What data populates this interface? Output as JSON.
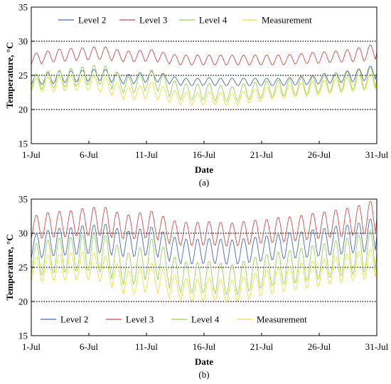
{
  "colors": {
    "level2": "#4a6aa5",
    "level3": "#c0504d",
    "level4": "#9bcf5a",
    "measurement": "#e4e43a",
    "reference_lines": "#000000"
  },
  "chart_data": [
    {
      "type": "line",
      "panel_label": "(a)",
      "xlabel": "Date",
      "ylabel": "Temperature, °C",
      "ylim": [
        15,
        35
      ],
      "yticks": [
        15,
        20,
        25,
        30,
        35
      ],
      "xlim": [
        0,
        30
      ],
      "x_tick_labels": [
        "1-Jul",
        "6-Jul",
        "11-Jul",
        "16-Jul",
        "21-Jul",
        "26-Jul",
        "31-Jul"
      ],
      "x_tick_days": [
        0,
        5,
        10,
        15,
        20,
        25,
        30
      ],
      "reference_lines": [
        20,
        25,
        30
      ],
      "legend_position": "top",
      "series": [
        {
          "name": "Level 2",
          "key": "level2",
          "daily_mean": [
            24.3,
            24.5,
            24.7,
            24.8,
            24.9,
            25.0,
            25.0,
            24.6,
            24.4,
            24.6,
            24.8,
            24.6,
            24.2,
            24.0,
            24.0,
            24.1,
            24.0,
            24.0,
            24.0,
            24.0,
            24.0,
            24.0,
            24.1,
            24.2,
            24.3,
            24.5,
            24.6,
            24.8,
            25.0,
            25.3
          ],
          "daily_amplitude": [
            0.8,
            0.9,
            0.9,
            0.9,
            0.9,
            0.9,
            0.9,
            0.8,
            0.8,
            0.8,
            0.8,
            0.7,
            0.6,
            0.6,
            0.6,
            0.6,
            0.6,
            0.6,
            0.6,
            0.6,
            0.6,
            0.6,
            0.6,
            0.7,
            0.7,
            0.8,
            0.8,
            0.9,
            1.0,
            1.1
          ]
        },
        {
          "name": "Level 3",
          "key": "level3",
          "daily_mean": [
            27.4,
            27.7,
            27.9,
            28.0,
            28.1,
            28.2,
            28.2,
            27.9,
            27.7,
            27.8,
            27.9,
            27.6,
            27.3,
            27.2,
            27.2,
            27.2,
            27.2,
            27.2,
            27.2,
            27.2,
            27.2,
            27.2,
            27.3,
            27.4,
            27.5,
            27.6,
            27.7,
            27.8,
            28.0,
            28.3
          ],
          "daily_amplitude": [
            0.9,
            0.9,
            1.0,
            1.0,
            1.0,
            1.0,
            1.0,
            0.9,
            0.9,
            0.9,
            0.9,
            0.8,
            0.8,
            0.8,
            0.8,
            0.8,
            0.8,
            0.8,
            0.8,
            0.8,
            0.8,
            0.8,
            0.8,
            0.8,
            0.9,
            0.9,
            0.9,
            1.0,
            1.1,
            1.2
          ]
        },
        {
          "name": "Level 4",
          "key": "level4",
          "daily_mean": [
            24.0,
            24.3,
            24.4,
            24.6,
            24.8,
            25.0,
            24.9,
            24.1,
            23.5,
            23.8,
            24.4,
            23.8,
            22.9,
            22.5,
            22.5,
            22.6,
            22.3,
            22.2,
            22.5,
            22.7,
            22.9,
            23.0,
            23.2,
            23.3,
            23.5,
            23.7,
            23.9,
            24.1,
            24.3,
            24.6
          ],
          "daily_amplitude": [
            1.3,
            1.4,
            1.4,
            1.5,
            1.5,
            1.5,
            1.5,
            1.4,
            1.3,
            1.4,
            1.5,
            1.4,
            1.3,
            1.3,
            1.3,
            1.3,
            1.3,
            1.2,
            1.3,
            1.3,
            1.3,
            1.3,
            1.3,
            1.4,
            1.4,
            1.4,
            1.5,
            1.5,
            1.6,
            1.7
          ]
        },
        {
          "name": "Measurement",
          "key": "measurement",
          "daily_mean": [
            23.5,
            23.6,
            23.7,
            23.8,
            23.8,
            23.8,
            23.5,
            22.9,
            22.3,
            22.4,
            22.8,
            22.3,
            21.8,
            21.5,
            21.5,
            21.6,
            21.5,
            21.4,
            21.7,
            22.0,
            22.3,
            22.5,
            22.6,
            22.8,
            23.0,
            23.2,
            23.4,
            23.6,
            23.8,
            24.0
          ],
          "daily_amplitude": [
            1.1,
            1.2,
            1.2,
            1.2,
            1.2,
            1.2,
            1.2,
            1.1,
            1.0,
            1.1,
            1.2,
            1.1,
            1.0,
            1.0,
            1.0,
            1.0,
            1.0,
            1.0,
            1.0,
            1.0,
            1.0,
            1.0,
            1.0,
            1.1,
            1.1,
            1.1,
            1.2,
            1.2,
            1.3,
            1.3
          ]
        }
      ]
    },
    {
      "type": "line",
      "panel_label": "(b)",
      "xlabel": "Date",
      "ylabel": "Temperature, °C",
      "ylim": [
        15,
        35
      ],
      "yticks": [
        15,
        20,
        25,
        30,
        35
      ],
      "xlim": [
        0,
        30
      ],
      "x_tick_labels": [
        "1-Jul",
        "6-Jul",
        "11-Jul",
        "16-Jul",
        "21-Jul",
        "26-Jul",
        "31-Jul"
      ],
      "x_tick_days": [
        0,
        5,
        10,
        15,
        20,
        25,
        30
      ],
      "reference_lines": [
        20,
        25,
        30
      ],
      "legend_position": "bottom",
      "series": [
        {
          "name": "Level 2",
          "key": "level2",
          "daily_mean": [
            28.0,
            28.4,
            28.6,
            28.7,
            28.9,
            29.0,
            29.1,
            28.6,
            28.3,
            28.5,
            28.8,
            28.2,
            27.5,
            27.2,
            27.2,
            27.3,
            27.2,
            27.1,
            27.3,
            27.5,
            27.7,
            27.9,
            28.1,
            28.2,
            28.4,
            28.6,
            28.8,
            29.0,
            29.2,
            29.6
          ],
          "daily_amplitude": [
            2.0,
            2.1,
            2.2,
            2.2,
            2.3,
            2.3,
            2.3,
            2.2,
            2.1,
            2.2,
            2.2,
            2.1,
            2.0,
            2.0,
            2.0,
            2.0,
            2.0,
            2.0,
            2.0,
            2.0,
            2.0,
            2.0,
            2.1,
            2.1,
            2.2,
            2.2,
            2.3,
            2.3,
            2.4,
            2.6
          ]
        },
        {
          "name": "Level 3",
          "key": "level3",
          "daily_mean": [
            30.8,
            31.1,
            31.2,
            31.3,
            31.5,
            31.6,
            31.6,
            31.1,
            30.8,
            31.0,
            31.2,
            30.6,
            30.0,
            29.8,
            29.8,
            29.9,
            29.8,
            29.7,
            29.9,
            30.1,
            30.2,
            30.4,
            30.5,
            30.7,
            30.9,
            31.1,
            31.3,
            31.5,
            31.8,
            32.2
          ],
          "daily_amplitude": [
            1.9,
            2.0,
            2.1,
            2.1,
            2.2,
            2.3,
            2.3,
            2.1,
            2.0,
            2.1,
            2.1,
            2.0,
            1.9,
            1.9,
            1.9,
            1.9,
            1.9,
            1.9,
            1.9,
            1.9,
            1.9,
            2.0,
            2.0,
            2.0,
            2.1,
            2.1,
            2.2,
            2.3,
            2.4,
            2.6
          ]
        },
        {
          "name": "Level 4",
          "key": "level4",
          "daily_mean": [
            26.0,
            26.4,
            26.6,
            26.7,
            26.9,
            27.0,
            26.8,
            25.6,
            24.6,
            25.3,
            26.4,
            25.4,
            24.0,
            23.4,
            23.3,
            23.5,
            23.2,
            23.0,
            23.5,
            24.0,
            24.4,
            24.7,
            24.9,
            25.2,
            25.5,
            25.8,
            26.1,
            26.4,
            26.8,
            27.3
          ],
          "daily_amplitude": [
            2.6,
            2.7,
            2.8,
            2.8,
            2.9,
            3.0,
            3.0,
            2.8,
            2.6,
            2.7,
            2.9,
            2.7,
            2.6,
            2.5,
            2.5,
            2.5,
            2.5,
            2.5,
            2.5,
            2.6,
            2.6,
            2.6,
            2.7,
            2.7,
            2.8,
            2.8,
            2.9,
            3.0,
            3.1,
            3.3
          ]
        },
        {
          "name": "Measurement",
          "key": "measurement",
          "daily_mean": [
            24.6,
            24.8,
            24.9,
            25.0,
            25.1,
            25.0,
            24.6,
            23.6,
            22.6,
            22.9,
            23.6,
            22.8,
            22.0,
            21.6,
            21.5,
            21.7,
            21.5,
            21.4,
            21.8,
            22.3,
            22.7,
            23.0,
            23.3,
            23.6,
            23.9,
            24.2,
            24.5,
            24.8,
            25.1,
            25.4
          ],
          "daily_amplitude": [
            2.0,
            2.1,
            2.1,
            2.2,
            2.2,
            2.2,
            2.1,
            2.0,
            1.9,
            2.0,
            2.1,
            2.0,
            1.9,
            1.8,
            1.8,
            1.8,
            1.8,
            1.8,
            1.9,
            1.9,
            2.0,
            2.0,
            2.0,
            2.1,
            2.1,
            2.1,
            2.2,
            2.2,
            2.3,
            2.3
          ]
        }
      ]
    }
  ]
}
